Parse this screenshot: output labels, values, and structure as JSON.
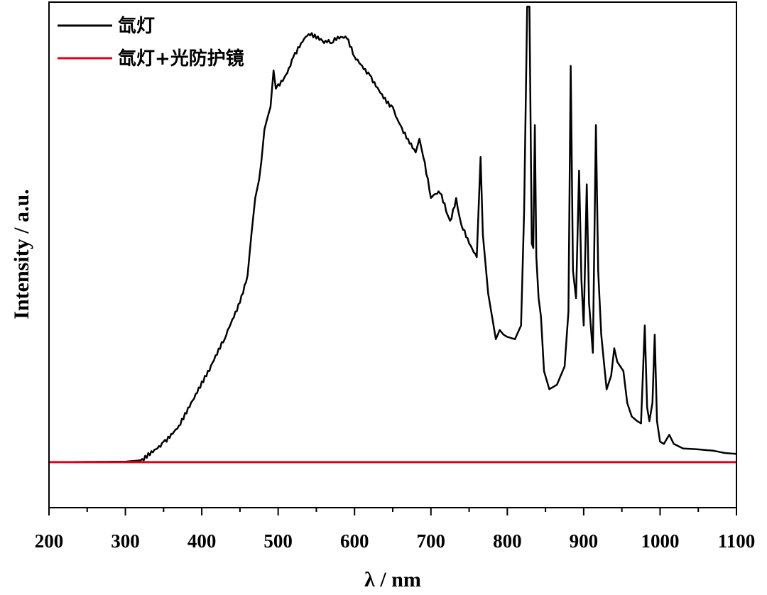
{
  "chart_data": {
    "type": "line",
    "title": "",
    "xlabel": "λ  / nm",
    "ylabel": "Intensity / a.u.",
    "xlim": [
      200,
      1100
    ],
    "ylim": [
      -0.1,
      1.01
    ],
    "x_ticks": [
      200,
      300,
      400,
      500,
      600,
      700,
      800,
      900,
      1000,
      1100
    ],
    "y_ticks_shown": false,
    "grid": false,
    "legend_position": "top-left",
    "series": [
      {
        "name": "氙灯",
        "color": "#000000",
        "points": [
          [
            200,
            0.0
          ],
          [
            300,
            0.001
          ],
          [
            320,
            0.004
          ],
          [
            330,
            0.02
          ],
          [
            350,
            0.045
          ],
          [
            370,
            0.08
          ],
          [
            390,
            0.14
          ],
          [
            410,
            0.2
          ],
          [
            430,
            0.27
          ],
          [
            450,
            0.35
          ],
          [
            460,
            0.41
          ],
          [
            465,
            0.5
          ],
          [
            470,
            0.58
          ],
          [
            475,
            0.62
          ],
          [
            478,
            0.66
          ],
          [
            482,
            0.73
          ],
          [
            485,
            0.75
          ],
          [
            490,
            0.78
          ],
          [
            494,
            0.86
          ],
          [
            497,
            0.82
          ],
          [
            500,
            0.83
          ],
          [
            510,
            0.85
          ],
          [
            520,
            0.89
          ],
          [
            530,
            0.92
          ],
          [
            540,
            0.94
          ],
          [
            550,
            0.93
          ],
          [
            560,
            0.92
          ],
          [
            570,
            0.92
          ],
          [
            580,
            0.93
          ],
          [
            590,
            0.93
          ],
          [
            600,
            0.89
          ],
          [
            620,
            0.85
          ],
          [
            640,
            0.8
          ],
          [
            650,
            0.78
          ],
          [
            660,
            0.74
          ],
          [
            670,
            0.71
          ],
          [
            680,
            0.68
          ],
          [
            685,
            0.71
          ],
          [
            690,
            0.67
          ],
          [
            700,
            0.58
          ],
          [
            712,
            0.59
          ],
          [
            720,
            0.55
          ],
          [
            725,
            0.53
          ],
          [
            733,
            0.58
          ],
          [
            740,
            0.52
          ],
          [
            750,
            0.48
          ],
          [
            760,
            0.45
          ],
          [
            765,
            0.67
          ],
          [
            768,
            0.5
          ],
          [
            775,
            0.37
          ],
          [
            785,
            0.27
          ],
          [
            790,
            0.29
          ],
          [
            795,
            0.28
          ],
          [
            800,
            0.275
          ],
          [
            810,
            0.27
          ],
          [
            818,
            0.3
          ],
          [
            822,
            0.55
          ],
          [
            826,
            1.0
          ],
          [
            829,
            1.0
          ],
          [
            832,
            0.48
          ],
          [
            834,
            0.47
          ],
          [
            836,
            0.74
          ],
          [
            838,
            0.45
          ],
          [
            841,
            0.36
          ],
          [
            844,
            0.32
          ],
          [
            848,
            0.2
          ],
          [
            855,
            0.16
          ],
          [
            865,
            0.17
          ],
          [
            875,
            0.21
          ],
          [
            880,
            0.33
          ],
          [
            883,
            0.87
          ],
          [
            886,
            0.42
          ],
          [
            890,
            0.36
          ],
          [
            894,
            0.64
          ],
          [
            897,
            0.4
          ],
          [
            900,
            0.3
          ],
          [
            904,
            0.61
          ],
          [
            907,
            0.35
          ],
          [
            912,
            0.24
          ],
          [
            916,
            0.74
          ],
          [
            919,
            0.42
          ],
          [
            923,
            0.28
          ],
          [
            930,
            0.16
          ],
          [
            936,
            0.19
          ],
          [
            940,
            0.25
          ],
          [
            944,
            0.22
          ],
          [
            948,
            0.21
          ],
          [
            952,
            0.2
          ],
          [
            957,
            0.13
          ],
          [
            963,
            0.1
          ],
          [
            970,
            0.09
          ],
          [
            975,
            0.085
          ],
          [
            980,
            0.3
          ],
          [
            983,
            0.12
          ],
          [
            986,
            0.09
          ],
          [
            990,
            0.13
          ],
          [
            993,
            0.28
          ],
          [
            996,
            0.09
          ],
          [
            1000,
            0.045
          ],
          [
            1005,
            0.04
          ],
          [
            1012,
            0.06
          ],
          [
            1018,
            0.04
          ],
          [
            1030,
            0.03
          ],
          [
            1050,
            0.028
          ],
          [
            1070,
            0.025
          ],
          [
            1085,
            0.02
          ],
          [
            1100,
            0.018
          ]
        ]
      },
      {
        "name": "氙灯+光防护镜",
        "color": "#e0001b",
        "points": [
          [
            200,
            0.0
          ],
          [
            1100,
            0.0
          ]
        ]
      }
    ]
  }
}
